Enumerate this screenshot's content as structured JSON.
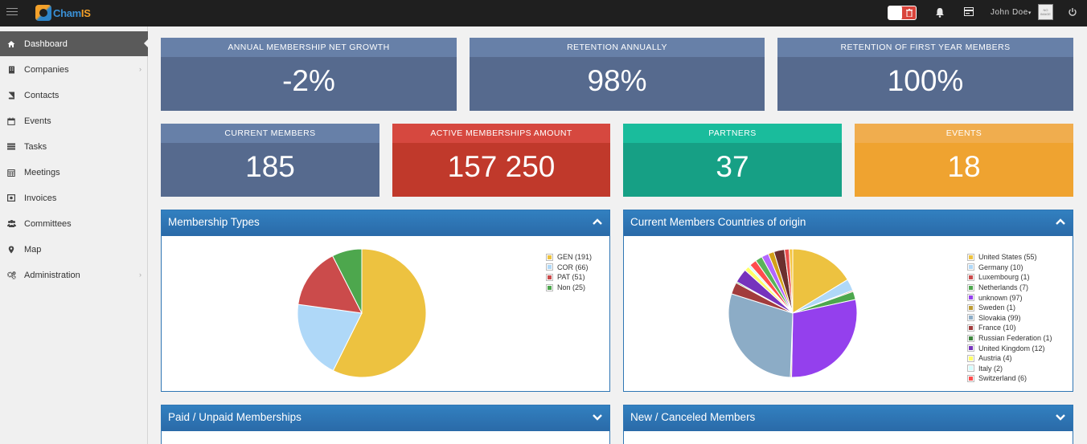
{
  "app": {
    "logo_text_a": "Cham",
    "logo_text_b": "IS",
    "user_name": "John Doe",
    "avatar_text": "NO IMAGE",
    "trash_icon": "trash-icon"
  },
  "sidebar": {
    "items": [
      {
        "label": "Dashboard",
        "icon": "home-icon",
        "active": true
      },
      {
        "label": "Companies",
        "icon": "building-icon",
        "has_children": true
      },
      {
        "label": "Contacts",
        "icon": "book-icon"
      },
      {
        "label": "Events",
        "icon": "calendar-icon"
      },
      {
        "label": "Tasks",
        "icon": "tasks-icon"
      },
      {
        "label": "Meetings",
        "icon": "calendar-grid-icon"
      },
      {
        "label": "Invoices",
        "icon": "invoice-icon"
      },
      {
        "label": "Committees",
        "icon": "users-icon"
      },
      {
        "label": "Map",
        "icon": "map-marker-icon"
      },
      {
        "label": "Administration",
        "icon": "cogs-icon",
        "has_children": true
      }
    ]
  },
  "stats_row1": [
    {
      "label": "ANNUAL MEMBERSHIP NET GROWTH",
      "value": "-2%"
    },
    {
      "label": "RETENTION ANNUALLY",
      "value": "98%"
    },
    {
      "label": "RETENTION OF FIRST YEAR MEMBERS",
      "value": "100%"
    }
  ],
  "stats_row2": [
    {
      "label": "CURRENT MEMBERS",
      "value": "185"
    },
    {
      "label": "ACTIVE MEMBERSHIPS AMOUNT",
      "value": "157 250"
    },
    {
      "label": "PARTNERS",
      "value": "37"
    },
    {
      "label": "EVENTS",
      "value": "18"
    }
  ],
  "panels": {
    "membership_types": "Membership Types",
    "countries": "Current Members Countries of origin",
    "paid_unpaid": "Paid / Unpaid Memberships",
    "new_canceled": "New / Canceled Members"
  },
  "colors": {
    "accent": "#2f72b2",
    "blue_tile": "#566a8e",
    "red_tile": "#c0392b",
    "teal_tile": "#16a085",
    "orange_tile": "#efa330"
  },
  "chart_data": [
    {
      "type": "pie",
      "title": "Membership Types",
      "legend_position": "top-right",
      "slices": [
        {
          "label": "GEN (191)",
          "value": 191,
          "color": "#edc240"
        },
        {
          "label": "COR (66)",
          "value": 66,
          "color": "#afd8f8"
        },
        {
          "label": "PAT (51)",
          "value": 51,
          "color": "#cb4b4b"
        },
        {
          "label": "Non (25)",
          "value": 25,
          "color": "#4da74d"
        }
      ]
    },
    {
      "type": "pie",
      "title": "Current Members Countries of origin",
      "legend_position": "top-right",
      "slices": [
        {
          "label": "United States (55)",
          "value": 55,
          "color": "#edc240"
        },
        {
          "label": "Germany (10)",
          "value": 10,
          "color": "#afd8f8"
        },
        {
          "label": "Luxembourg (1)",
          "value": 1,
          "color": "#cb4b4b"
        },
        {
          "label": "Netherlands (7)",
          "value": 7,
          "color": "#4da74d"
        },
        {
          "label": "unknown (97)",
          "value": 97,
          "color": "#9440ed"
        },
        {
          "label": "Sweden (1)",
          "value": 1,
          "color": "#bd9b33"
        },
        {
          "label": "Slovakia (99)",
          "value": 99,
          "color": "#8cacc6"
        },
        {
          "label": "France (10)",
          "value": 10,
          "color": "#a23c3c"
        },
        {
          "label": "Russian Federation (1)",
          "value": 1,
          "color": "#3d853d"
        },
        {
          "label": "United Kingdom (12)",
          "value": 12,
          "color": "#7633bd"
        },
        {
          "label": "Austria (4)",
          "value": 4,
          "color": "#ffff66"
        },
        {
          "label": "Italy (2)",
          "value": 2,
          "color": "#d2ffff"
        },
        {
          "label": "Switzerland (6)",
          "value": 6,
          "color": "#ff4d4d"
        },
        {
          "label": "",
          "value": 6,
          "color": "#59b359"
        },
        {
          "label": "",
          "value": 6,
          "color": "#b266ff"
        },
        {
          "label": "",
          "value": 5,
          "color": "#d4a017"
        },
        {
          "label": "",
          "value": 9,
          "color": "#6b2f2f"
        },
        {
          "label": "",
          "value": 4,
          "color": "#e84c4c"
        },
        {
          "label": "",
          "value": 3,
          "color": "#f5c542"
        }
      ]
    }
  ]
}
